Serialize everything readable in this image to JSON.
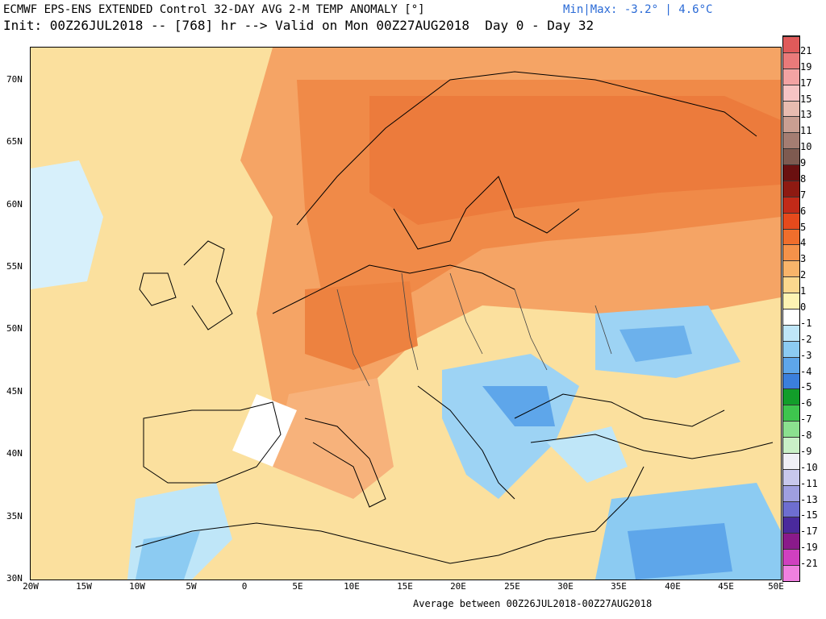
{
  "header": {
    "title_line1": "ECMWF EPS-ENS EXTENDED Control 32-DAY AVG 2-M TEMP ANOMALY [°]",
    "minmax": "Min|Max: -3.2° | 4.6°C",
    "title_line2": "Init: 00Z26JUL2018 -- [768] hr --> Valid on Mon 00Z27AUG2018  Day 0 - Day 32"
  },
  "footer": {
    "average_text": "Average between 00Z26JUL2018-00Z27AUG2018"
  },
  "map": {
    "lat_labels": [
      "70N",
      "65N",
      "60N",
      "55N",
      "50N",
      "45N",
      "40N",
      "35N",
      "30N"
    ],
    "lon_labels": [
      "20W",
      "15W",
      "10W",
      "5W",
      "0",
      "5E",
      "10E",
      "15E",
      "20E",
      "25E",
      "30E",
      "35E",
      "40E",
      "45E",
      "50E"
    ]
  },
  "colorbar": {
    "labels": [
      "21",
      "19",
      "17",
      "15",
      "13",
      "11",
      "10",
      "9",
      "8",
      "7",
      "6",
      "5",
      "4",
      "3",
      "2",
      "1",
      "0",
      "-1",
      "-2",
      "-3",
      "-4",
      "-5",
      "-6",
      "-7",
      "-8",
      "-9",
      "-10",
      "-11",
      "-13",
      "-15",
      "-17",
      "-19",
      "-21"
    ],
    "colors": [
      "#e05a5a",
      "#ea7a7a",
      "#f3a3a3",
      "#f6c4c4",
      "#e8bcb0",
      "#c99f92",
      "#a47d72",
      "#7e5a50",
      "#6a1010",
      "#8e1a12",
      "#c22a18",
      "#e64a1c",
      "#f06e2c",
      "#f5924a",
      "#f8b46a",
      "#fbd88e",
      "#fdf3b3",
      "#ffffff",
      "#bfe6f8",
      "#8ccbf2",
      "#5ea6ea",
      "#3b7fdc",
      "#129e2a",
      "#3ec54e",
      "#8be08f",
      "#c9f0c7",
      "#efeff6",
      "#c8c8ec",
      "#9f9fe0",
      "#6e6ed0",
      "#4a2a9c",
      "#8a1a8a",
      "#d040c0",
      "#f080e0"
    ]
  }
}
